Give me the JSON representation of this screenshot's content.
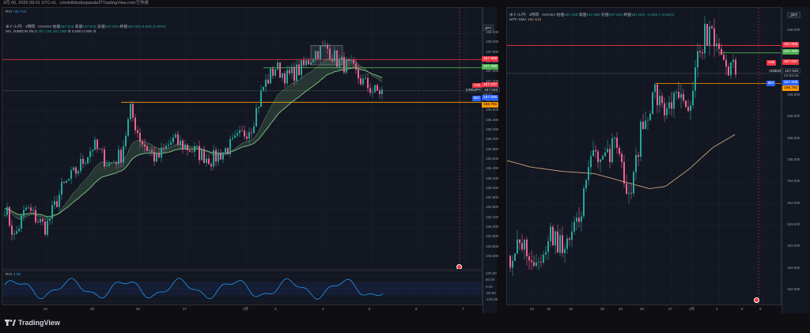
{
  "header": {
    "text": "3月 06, 2026 09:01 UTC+9、crimin8dsskoipandaがTradingView.comで作成"
  },
  "footer": {
    "brand": "TradingView"
  },
  "left_chart": {
    "rci_top_label": "RCI",
    "rci_top_value": "-56.719",
    "legend_line1": {
      "title": "米ドル/円 · 1時間 · OANDA",
      "open_label": "始値",
      "open": "157.015",
      "high_label": "高値",
      "high": "157.028",
      "low_label": "安値",
      "low": "157.015",
      "close_label": "終値",
      "close": "157.020",
      "change": "0.000 (0.00%)"
    },
    "legend_line2": {
      "name": "MA_RIBBON R5.2",
      "v1": "157.152",
      "v2": "157.259",
      "v3": "0.000",
      "v4": "0.000"
    },
    "currency": "JPY",
    "price_ticks": [
      "158.200",
      "158.000",
      "157.800",
      "157.600",
      "157.400",
      "157.200",
      "157.000",
      "156.800",
      "156.600",
      "156.400",
      "156.200",
      "156.000",
      "155.800",
      "155.600",
      "155.400",
      "155.200",
      "155.000",
      "154.800",
      "154.600",
      "154.400",
      "154.200",
      "154.000",
      "153.800",
      "153.600"
    ],
    "price_tags": {
      "red_line": "157.659",
      "green_line": "157.490",
      "ask": "157.037",
      "symbol": "USDJPY",
      "last": "157.020",
      "countdown": "59:01",
      "bid": "157.005",
      "orange_line": "156.781"
    },
    "ask_label": "Ask",
    "bid_label": "Bid",
    "date_ticks": [
      "24",
      "25",
      "26",
      "27",
      "3月",
      "3",
      "4",
      "5",
      "6",
      "7"
    ],
    "rci_pane": {
      "label": "RCI",
      "value": "4.36",
      "ticks": [
        "100.00",
        "50.00",
        "0.00",
        "-50.00",
        "-100.00"
      ]
    }
  },
  "right_chart": {
    "legend_line1": {
      "title": "米ドル/円 · 4時間 · OANDA",
      "open_label": "始値",
      "open": "157.028",
      "high_label": "高値",
      "high": "157.080",
      "low_label": "安値",
      "low": "157.015",
      "close_label": "終値",
      "close": "157.020",
      "change": "−0.034 (−0.02%)"
    },
    "legend_line2": {
      "name": "MTF-SMA",
      "v1": "155.613"
    },
    "currency": "JPY",
    "price_ticks": [
      "158.000",
      "157.500",
      "157.000",
      "156.500",
      "156.000",
      "155.500",
      "155.000",
      "154.500",
      "154.000",
      "153.500",
      "153.000",
      "152.500",
      "152.000"
    ],
    "price_tags": {
      "red_line": "157.659",
      "green_line": "157.490",
      "ask": "157.037",
      "symbol": "USDJPY",
      "last": "157.020",
      "countdown": "03:58:59",
      "bid": "157.005",
      "orange_line": "156.781"
    },
    "ask_label": "Ask",
    "bid_label": "Bid",
    "date_ticks": [
      "13",
      "16",
      "18",
      "20",
      "23",
      "25",
      "27",
      "3月",
      "4",
      "6",
      "9"
    ]
  },
  "colors": {
    "bull": "#26a69a",
    "bear": "#f06292",
    "red_line": "#f23645",
    "green_line": "#4caf50",
    "orange_line": "#ff9800",
    "rci_line": "#2196f3",
    "sma_line": "#c8a27a",
    "ribbon": "#81c784"
  }
}
